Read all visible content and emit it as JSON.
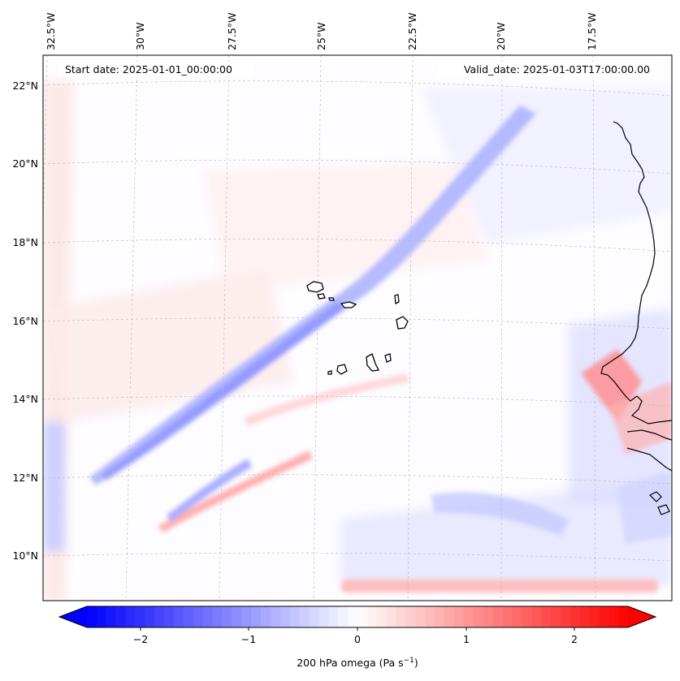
{
  "map": {
    "start_label": "Start date: 2025-01-01_00:00:00",
    "valid_label": "Valid_date: 2025-01-03T17:00:00.00",
    "lon_ticks": [
      "32.5°W",
      "30°W",
      "27.5°W",
      "25°W",
      "22.5°W",
      "20°W",
      "17.5°W"
    ],
    "lat_ticks": [
      "22°N",
      "20°N",
      "18°N",
      "16°N",
      "14°N",
      "12°N",
      "10°N"
    ],
    "extent": {
      "lon_min": -32.7,
      "lon_max": -15.6,
      "lat_min": 8.9,
      "lat_max": 22.8
    }
  },
  "colorbar": {
    "label": "200 hPa omega (Pa s",
    "label_exp": "−1",
    "label_close": ")",
    "ticks": [
      "−2",
      "−1",
      "0",
      "1",
      "2"
    ],
    "range": [
      -2.75,
      2.75
    ],
    "colormap": "bwr",
    "colors": {
      "low": "#0000ff",
      "mid": "#ffffff",
      "high": "#ff0000"
    }
  }
}
